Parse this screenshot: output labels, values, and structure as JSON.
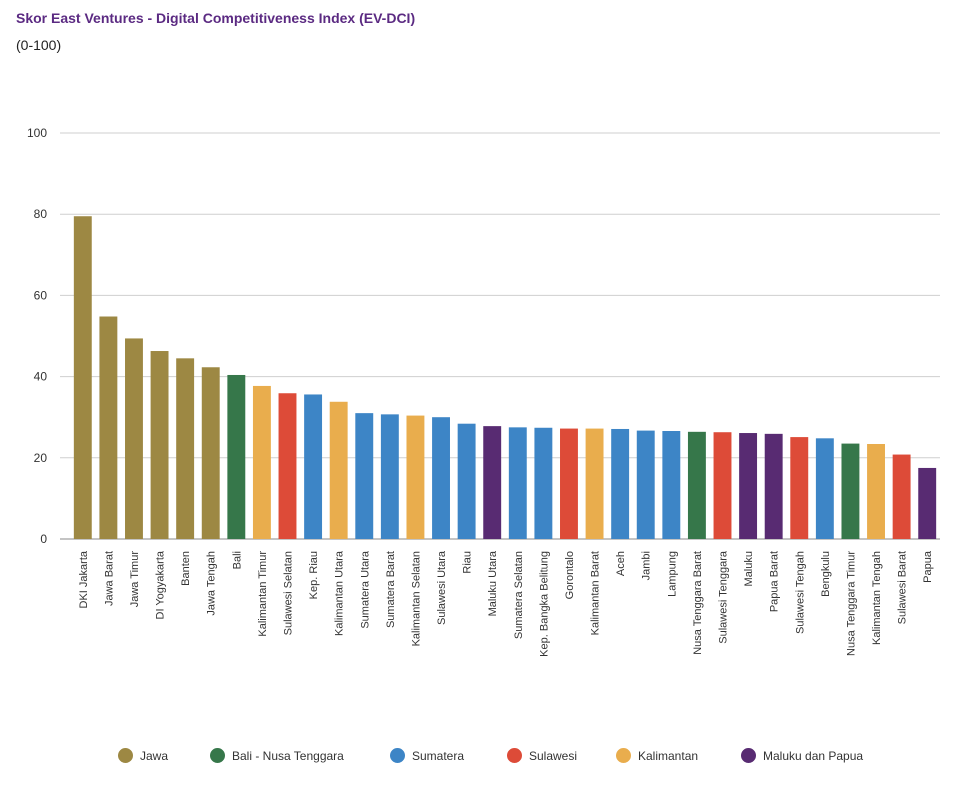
{
  "chart_data": {
    "type": "bar",
    "title": "Skor East Ventures - Digital Competitiveness Index (EV-DCI)",
    "subtitle": "(0-100)",
    "ylim": [
      0,
      100
    ],
    "yticks": [
      0,
      20,
      40,
      60,
      80,
      100
    ],
    "grid": true,
    "legend_position": "bottom",
    "groups": [
      {
        "name": "Jawa",
        "color": "#9d8843"
      },
      {
        "name": "Bali - Nusa Tenggara",
        "color": "#36774a"
      },
      {
        "name": "Sumatera",
        "color": "#3d85c6"
      },
      {
        "name": "Sulawesi",
        "color": "#dd4b38"
      },
      {
        "name": "Kalimantan",
        "color": "#e9ad4d"
      },
      {
        "name": "Maluku dan Papua",
        "color": "#582b72"
      }
    ],
    "categories": [
      "DKI Jakarta",
      "Jawa Barat",
      "Jawa Timur",
      "DI Yogyakarta",
      "Banten",
      "Jawa Tengah",
      "Bali",
      "Kalimantan Timur",
      "Sulawesi Selatan",
      "Kep. Riau",
      "Kalimantan Utara",
      "Sumatera Utara",
      "Sumatera Barat",
      "Kalimantan Selatan",
      "Sulawesi Utara",
      "Riau",
      "Maluku Utara",
      "Sumatera Selatan",
      "Kep. Bangka Belitung",
      "Gorontalo",
      "Kalimantan Barat",
      "Aceh",
      "Jambi",
      "Lampung",
      "Nusa Tenggara Barat",
      "Sulawesi Tenggara",
      "Maluku",
      "Papua Barat",
      "Sulawesi Tengah",
      "Bengkulu",
      "Nusa Tenggara Timur",
      "Kalimantan Tengah",
      "Sulawesi Barat",
      "Papua"
    ],
    "values": [
      79.5,
      54.8,
      49.4,
      46.3,
      44.5,
      42.3,
      40.4,
      37.7,
      35.9,
      35.6,
      33.8,
      31.0,
      30.7,
      30.4,
      30.0,
      28.4,
      27.8,
      27.5,
      27.4,
      27.2,
      27.2,
      27.1,
      26.7,
      26.6,
      26.4,
      26.3,
      26.1,
      25.9,
      25.1,
      24.8,
      23.5,
      23.4,
      20.8,
      17.5
    ],
    "group_of_bar": [
      "Jawa",
      "Jawa",
      "Jawa",
      "Jawa",
      "Jawa",
      "Jawa",
      "Bali - Nusa Tenggara",
      "Kalimantan",
      "Sulawesi",
      "Sumatera",
      "Kalimantan",
      "Sumatera",
      "Sumatera",
      "Kalimantan",
      "Sumatera",
      "Sumatera",
      "Maluku dan Papua",
      "Sumatera",
      "Sumatera",
      "Sulawesi",
      "Kalimantan",
      "Sumatera",
      "Sumatera",
      "Sumatera",
      "Bali - Nusa Tenggara",
      "Sulawesi",
      "Maluku dan Papua",
      "Maluku dan Papua",
      "Sulawesi",
      "Sumatera",
      "Bali - Nusa Tenggara",
      "Kalimantan",
      "Sulawesi",
      "Maluku dan Papua"
    ]
  }
}
